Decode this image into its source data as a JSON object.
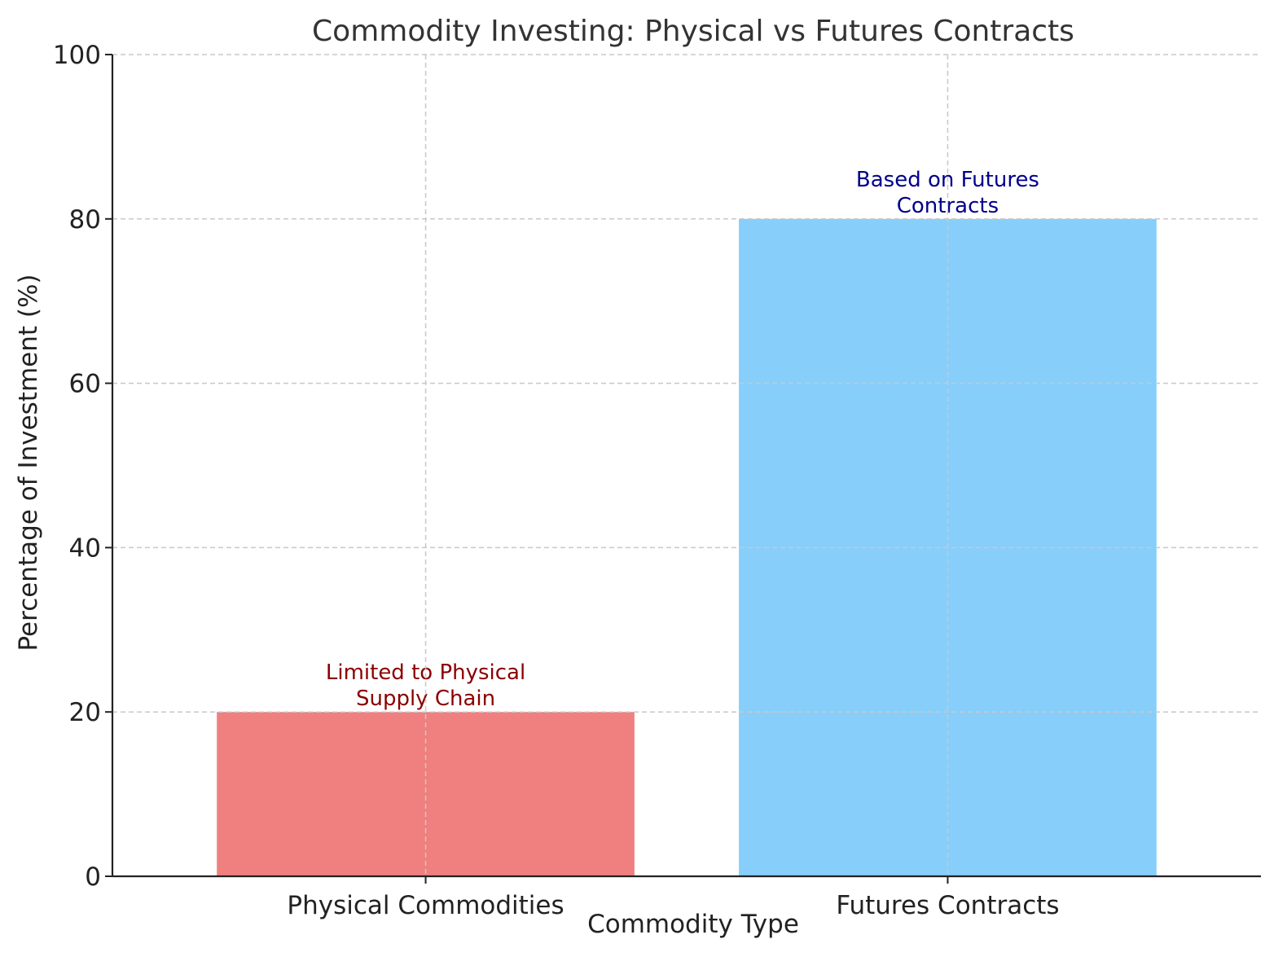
{
  "chart_data": {
    "type": "bar",
    "title": "Commodity Investing: Physical vs Futures Contracts",
    "xlabel": "Commodity Type",
    "ylabel": "Percentage of Investment (%)",
    "categories": [
      "Physical Commodities",
      "Futures Contracts"
    ],
    "values": [
      20,
      80
    ],
    "colors": [
      "#f08080",
      "#87cefa"
    ],
    "annotations": [
      {
        "lines": [
          "Limited to Physical",
          "Supply Chain"
        ],
        "color": "#8b0000"
      },
      {
        "lines": [
          "Based on Futures",
          "Contracts"
        ],
        "color": "#00008b"
      }
    ],
    "ylim": [
      0,
      100
    ],
    "yticks": [
      0,
      20,
      40,
      60,
      80,
      100
    ],
    "grid": true
  }
}
